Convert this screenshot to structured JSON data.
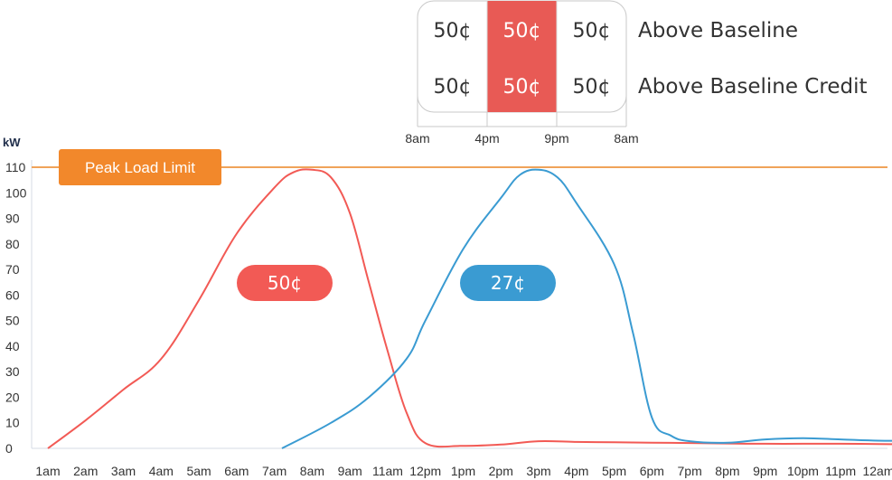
{
  "rate_table": {
    "rows": [
      {
        "label": "Above Baseline",
        "cells": [
          "50¢",
          "50¢",
          "50¢"
        ]
      },
      {
        "label": "Above Baseline Credit",
        "cells": [
          "50¢",
          "50¢",
          "50¢"
        ]
      }
    ],
    "time_ticks": [
      "8am",
      "4pm",
      "9pm",
      "8am"
    ],
    "highlight_color": "#e85a55",
    "highlight_column": 1
  },
  "chart_data": {
    "type": "line",
    "ylabel": "kW",
    "ylim": [
      0,
      110
    ],
    "yticks": [
      0,
      10,
      20,
      30,
      40,
      50,
      60,
      70,
      80,
      90,
      100,
      110
    ],
    "categories": [
      "1am",
      "2am",
      "3am",
      "4am",
      "5am",
      "6am",
      "7am",
      "8am",
      "9am",
      "11am",
      "12pm",
      "1pm",
      "2pm",
      "3pm",
      "4pm",
      "5pm",
      "6pm",
      "7pm",
      "8pm",
      "9pm",
      "10pm",
      "11pm",
      "12am"
    ],
    "reference_line": {
      "label": "Peak Load Limit",
      "value": 110,
      "color": "#f2882b"
    },
    "series": [
      {
        "color": "#f25a55",
        "badge": "50¢",
        "points": [
          [
            0,
            0
          ],
          [
            1,
            11
          ],
          [
            2,
            23
          ],
          [
            3,
            35
          ],
          [
            4,
            58
          ],
          [
            5,
            84
          ],
          [
            6,
            102
          ],
          [
            6.5,
            108
          ],
          [
            7,
            109
          ],
          [
            7.5,
            106
          ],
          [
            8,
            92
          ],
          [
            8.5,
            65
          ],
          [
            9,
            38
          ],
          [
            9.5,
            14
          ],
          [
            10,
            2
          ],
          [
            11,
            1
          ],
          [
            12,
            1.5
          ],
          [
            13,
            2.8
          ],
          [
            14,
            2.5
          ],
          [
            15,
            2.4
          ],
          [
            16,
            2.2
          ],
          [
            17,
            2.1
          ],
          [
            18,
            1.9
          ],
          [
            19,
            1.8
          ],
          [
            20,
            1.8
          ],
          [
            21,
            1.8
          ],
          [
            22,
            1.7
          ],
          [
            23,
            1.5
          ]
        ]
      },
      {
        "color": "#3a9bd2",
        "badge": "27¢",
        "points": [
          [
            6.2,
            0
          ],
          [
            7.5,
            10
          ],
          [
            8.5,
            20
          ],
          [
            9.5,
            35
          ],
          [
            10,
            50
          ],
          [
            11,
            78
          ],
          [
            12,
            98
          ],
          [
            12.5,
            107
          ],
          [
            13,
            109
          ],
          [
            13.5,
            106
          ],
          [
            14,
            96
          ],
          [
            15,
            72
          ],
          [
            15.5,
            45
          ],
          [
            16,
            12
          ],
          [
            16.5,
            5
          ],
          [
            17,
            2.8
          ],
          [
            18,
            2.2
          ],
          [
            19,
            3.5
          ],
          [
            20,
            4
          ],
          [
            21,
            3.5
          ],
          [
            22,
            3
          ],
          [
            23,
            3
          ]
        ]
      }
    ]
  }
}
